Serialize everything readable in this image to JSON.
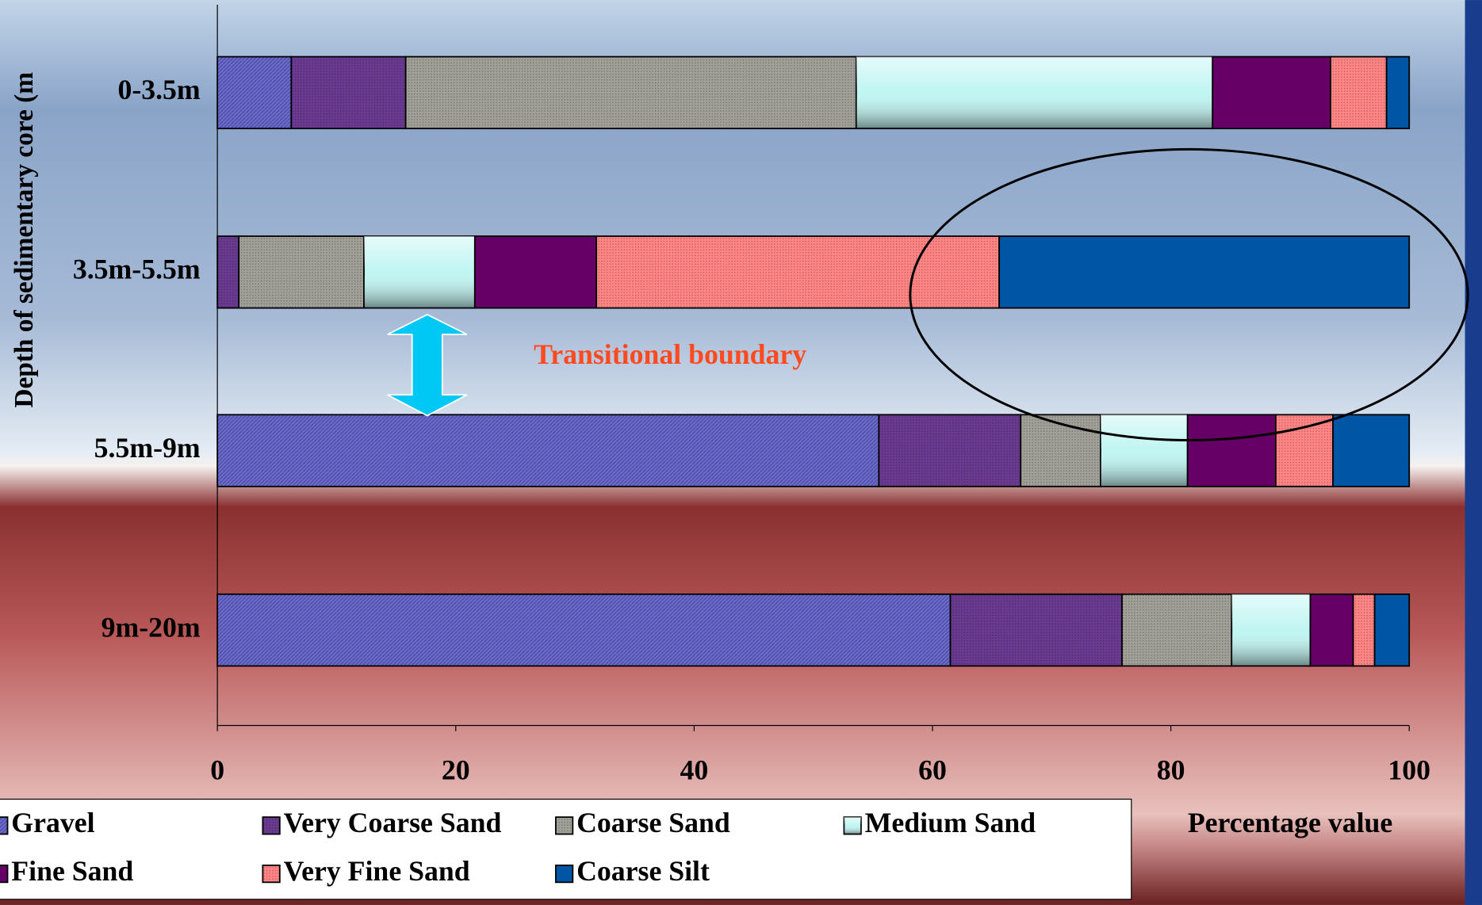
{
  "chart_data": {
    "type": "stacked_barh",
    "categories": [
      "0-3.5m",
      "3.5m-5.5m",
      "5.5m-9m",
      "9m-20m"
    ],
    "series": [
      {
        "name": "Gravel",
        "color": "#6a6ad0",
        "values": [
          6.2,
          0,
          55.5,
          61.5
        ]
      },
      {
        "name": "Very Coarse Sand",
        "color": "#6a3a90",
        "values": [
          9.6,
          1.8,
          11.9,
          14.4
        ]
      },
      {
        "name": "Coarse Sand",
        "color": "#a0a098",
        "values": [
          37.8,
          10.5,
          6.7,
          9.2
        ]
      },
      {
        "name": "Medium Sand",
        "color": "#bff5f2",
        "values": [
          29.9,
          9.3,
          7.3,
          6.6
        ]
      },
      {
        "name": "Fine Sand",
        "color": "#660066",
        "values": [
          9.9,
          10.2,
          7.4,
          3.6
        ]
      },
      {
        "name": "Very Fine Sand",
        "color": "#ff8484",
        "values": [
          4.7,
          33.8,
          4.8,
          1.8
        ]
      },
      {
        "name": "Coarse Silt",
        "color": "#0055a5",
        "values": [
          1.9,
          34.4,
          6.4,
          2.9
        ]
      }
    ],
    "xlim": [
      0,
      100
    ],
    "xticks": [
      0,
      20,
      40,
      60,
      80,
      100
    ],
    "xlabel": "Percentage value",
    "ylabel": "Depth of sedimentary core (m",
    "annotation": "Transitional boundary"
  }
}
